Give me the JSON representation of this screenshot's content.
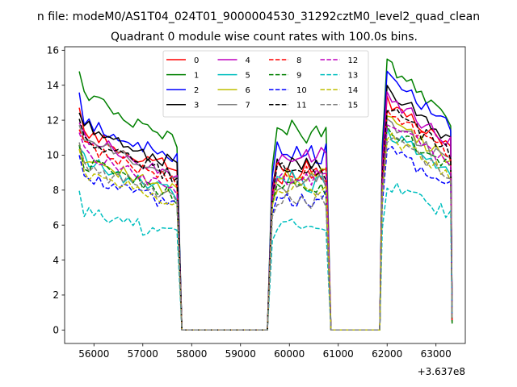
{
  "figure": {
    "suptitle": "n file: modeM0/AS1T04_024T01_9000004530_31292cztM0_level2_quad_clean"
  },
  "chart_data": {
    "type": "line",
    "title": "Quadrant 0 module wise count rates with 100.0s bins.",
    "xlabel": "",
    "ylabel": "",
    "x_offset_label": "+3.637e8",
    "xlim": [
      55400,
      63600
    ],
    "ylim": [
      -0.77,
      16.2
    ],
    "xticks": [
      56000,
      57000,
      58000,
      59000,
      60000,
      61000,
      62000,
      63000
    ],
    "xtick_labels": [
      "56000",
      "57000",
      "58000",
      "59000",
      "60000",
      "61000",
      "62000",
      "63000"
    ],
    "yticks": [
      0,
      2,
      4,
      6,
      8,
      10,
      12,
      14,
      16
    ],
    "ytick_labels": [
      "0",
      "2",
      "4",
      "6",
      "8",
      "10",
      "12",
      "14",
      "16"
    ],
    "grid": false,
    "legend": {
      "placement": "upper-center",
      "columns": 4
    },
    "segments": [
      {
        "start": 55700,
        "end": 57700,
        "fall_end": 57800
      },
      {
        "start": 59550,
        "end": 60750,
        "rise_start": 59550
      },
      {
        "start": 61900,
        "end": 63300
      }
    ],
    "zero_ranges": [
      [
        57800,
        59550
      ],
      [
        60850,
        61850
      ]
    ],
    "series": [
      {
        "name": "0",
        "color": "#ff0000",
        "dash": "solid",
        "levels": [
          10.8,
          9.0,
          12.0
        ]
      },
      {
        "name": "1",
        "color": "#008000",
        "dash": "solid",
        "levels": [
          12.7,
          11.3,
          14.0
        ]
      },
      {
        "name": "2",
        "color": "#0000ff",
        "dash": "solid",
        "levels": [
          11.5,
          10.2,
          13.4
        ]
      },
      {
        "name": "3",
        "color": "#000000",
        "dash": "solid",
        "levels": [
          11.2,
          9.6,
          12.7
        ]
      },
      {
        "name": "4",
        "color": "#bf00bf",
        "dash": "solid",
        "levels": [
          10.6,
          9.7,
          12.4
        ]
      },
      {
        "name": "5",
        "color": "#00bfbf",
        "dash": "solid",
        "levels": [
          9.2,
          8.6,
          10.5
        ]
      },
      {
        "name": "6",
        "color": "#bfbf00",
        "dash": "solid",
        "levels": [
          9.3,
          8.8,
          11.2
        ]
      },
      {
        "name": "7",
        "color": "#808080",
        "dash": "solid",
        "levels": [
          10.3,
          8.5,
          11.1
        ]
      },
      {
        "name": "8",
        "color": "#ff0000",
        "dash": "dashed",
        "levels": [
          10.0,
          8.9,
          11.6
        ]
      },
      {
        "name": "9",
        "color": "#008000",
        "dash": "dashed",
        "levels": [
          9.1,
          8.0,
          10.8
        ]
      },
      {
        "name": "10",
        "color": "#0000ff",
        "dash": "dashed",
        "levels": [
          8.5,
          7.6,
          9.6
        ]
      },
      {
        "name": "11",
        "color": "#000000",
        "dash": "dashed",
        "levels": [
          10.4,
          9.0,
          11.7
        ]
      },
      {
        "name": "12",
        "color": "#bf00bf",
        "dash": "dashed",
        "levels": [
          9.6,
          8.6,
          11.0
        ]
      },
      {
        "name": "13",
        "color": "#00bfbf",
        "dash": "dashed",
        "levels": [
          6.4,
          6.0,
          7.7
        ]
      },
      {
        "name": "14",
        "color": "#bfbf00",
        "dash": "dashed",
        "levels": [
          8.6,
          7.9,
          10.3
        ]
      },
      {
        "name": "15",
        "color": "#808080",
        "dash": "dashed",
        "levels": [
          8.9,
          7.4,
          10.2
        ]
      }
    ]
  }
}
